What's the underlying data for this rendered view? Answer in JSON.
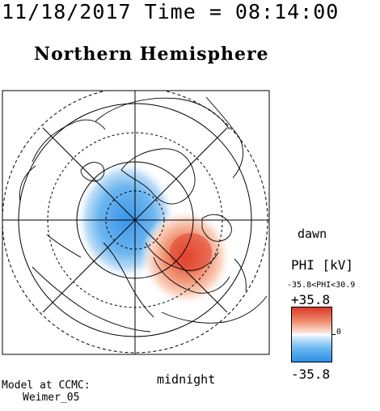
{
  "header": {
    "timestamp": "11/18/2017 Time = 08:14:00",
    "title": "Northern Hemisphere"
  },
  "map": {
    "dawn_label": "dawn",
    "midnight_label": "midnight",
    "colors": {
      "positive": "#e0442e",
      "negative": "#3b95e8",
      "frame": "#000000"
    }
  },
  "colorbar": {
    "title": "PHI [kV]",
    "range_text": "-35.8<PHI<30.9",
    "max_label": "+35.8",
    "min_label": "-35.8",
    "zero_label": "0"
  },
  "credit": {
    "line1": "Model at CCMC:",
    "line2": "Weimer_05"
  }
}
